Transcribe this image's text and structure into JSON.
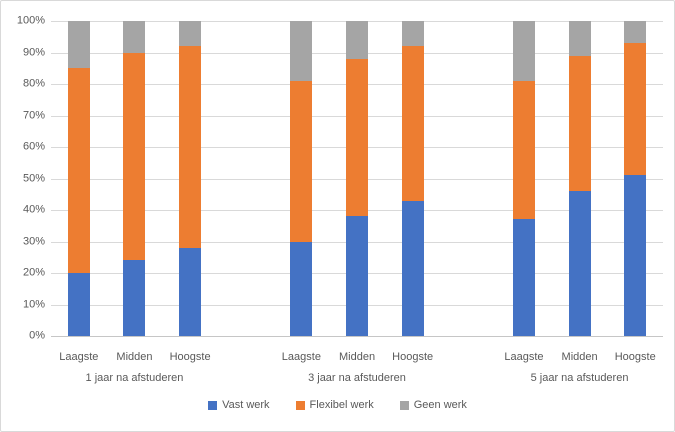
{
  "chart_data": {
    "type": "bar",
    "stacked": true,
    "percent_stacked": true,
    "title": "",
    "xlabel": "",
    "ylabel": "",
    "grid": true,
    "legend_position": "bottom",
    "groups": [
      "1 jaar na afstuderen",
      "3 jaar na afstuderen",
      "5 jaar na afstuderen"
    ],
    "categories": [
      "Laagste",
      "Midden",
      "Hoogste"
    ],
    "series": [
      {
        "name": "Vast werk",
        "color": "#4472C4",
        "values": [
          [
            20,
            24,
            28
          ],
          [
            30,
            38,
            43
          ],
          [
            37,
            46,
            51
          ]
        ]
      },
      {
        "name": "Flexibel werk",
        "color": "#ED7D31",
        "values": [
          [
            65,
            66,
            64
          ],
          [
            51,
            50,
            49
          ],
          [
            44,
            43,
            42
          ]
        ]
      },
      {
        "name": "Geen werk",
        "color": "#A5A5A5",
        "values": [
          [
            15,
            10,
            8
          ],
          [
            19,
            12,
            8
          ],
          [
            19,
            11,
            7
          ]
        ]
      }
    ],
    "y_axis": {
      "min": 0,
      "max": 100,
      "tick_step": 10,
      "ticks": [
        "0%",
        "10%",
        "20%",
        "30%",
        "40%",
        "50%",
        "60%",
        "70%",
        "80%",
        "90%",
        "100%"
      ]
    }
  },
  "colors": {
    "background": "#FFFFFF",
    "border": "#D9D9D9",
    "gridline": "#D9D9D9",
    "axis_line": "#C6C6C6",
    "text": "#595959"
  }
}
